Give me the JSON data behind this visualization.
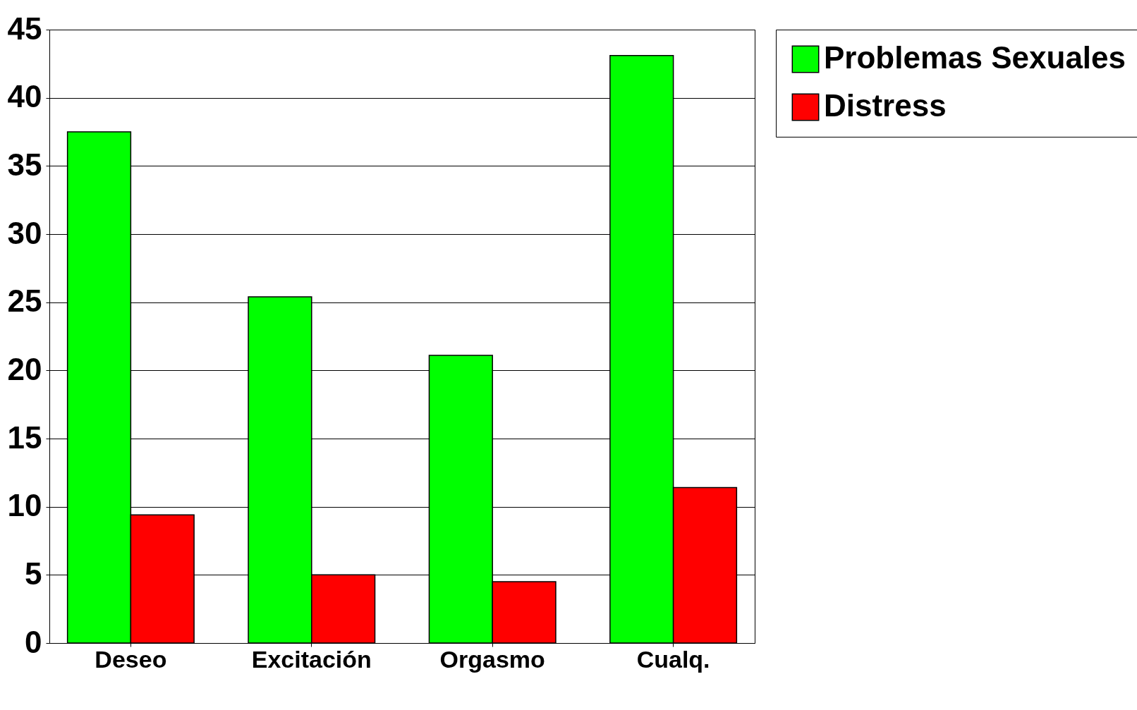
{
  "chart_data": {
    "type": "bar",
    "categories": [
      "Deseo",
      "Excitación",
      "Orgasmo",
      "Cualq."
    ],
    "series": [
      {
        "name": "Problemas Sexuales",
        "color": "#00ff00",
        "values": [
          37.5,
          25.4,
          21.1,
          43.1
        ]
      },
      {
        "name": "Distress",
        "color": "#ff0000",
        "values": [
          9.4,
          5.0,
          4.5,
          11.4
        ]
      }
    ],
    "ylim": [
      0,
      45
    ],
    "yticks": [
      0,
      5,
      10,
      15,
      20,
      25,
      30,
      35,
      40,
      45
    ],
    "grid": "y",
    "legend": "right"
  }
}
